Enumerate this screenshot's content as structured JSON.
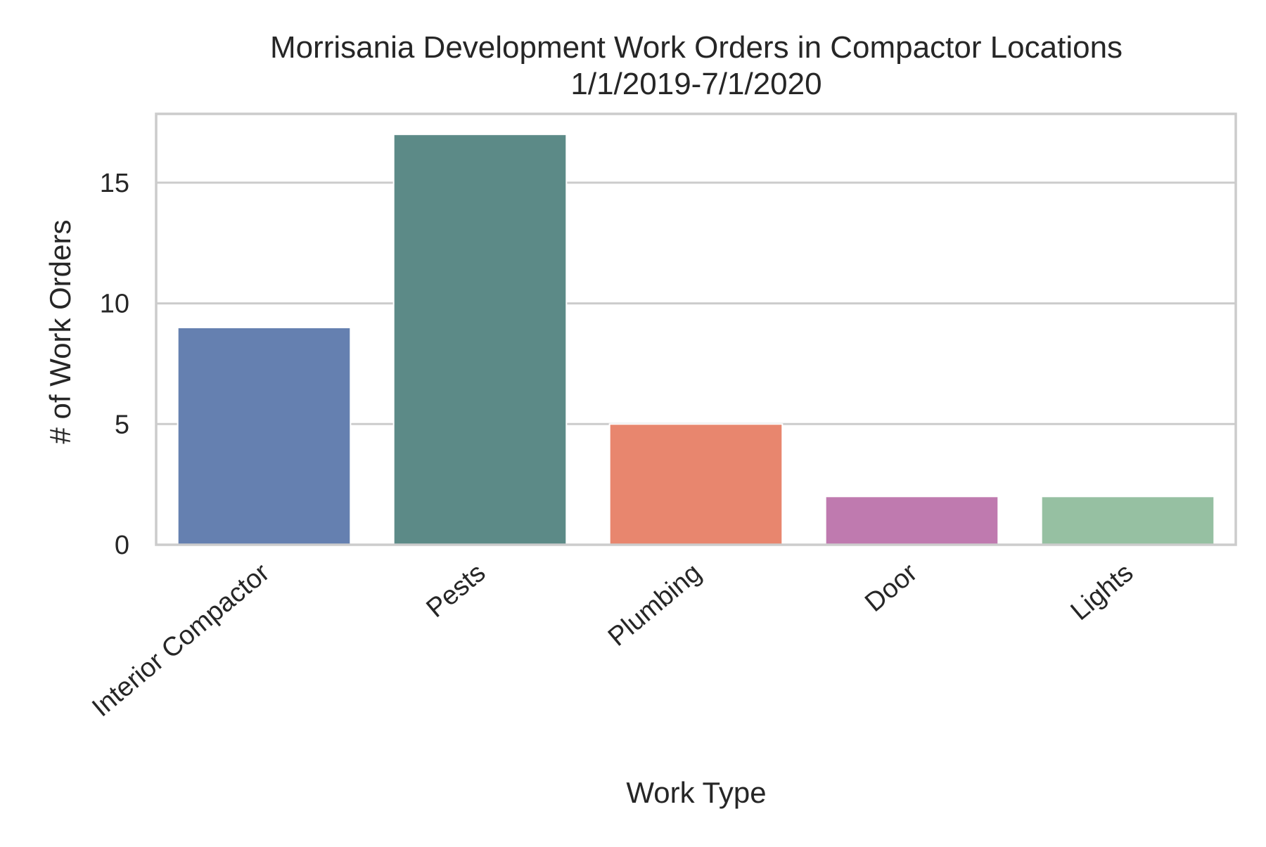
{
  "chart_data": {
    "type": "bar",
    "title": "Morrisania Development Work Orders in Compactor Locations",
    "subtitle": "1/1/2019-7/1/2020",
    "xlabel": "Work Type",
    "ylabel": "# of Work Orders",
    "categories": [
      "Interior Compactor",
      "Pests",
      "Plumbing",
      "Door",
      "Lights"
    ],
    "values": [
      9,
      17,
      5,
      2,
      2
    ],
    "colors": [
      "#6580b0",
      "#5c8a87",
      "#e8866e",
      "#bf7aaf",
      "#96c0a2"
    ],
    "ylim": [
      0,
      17.85
    ],
    "yticks": [
      0,
      5,
      10,
      15
    ],
    "ytick_labels": [
      "0",
      "5",
      "10",
      "15"
    ],
    "grid": "horizontal",
    "legend": "none"
  }
}
